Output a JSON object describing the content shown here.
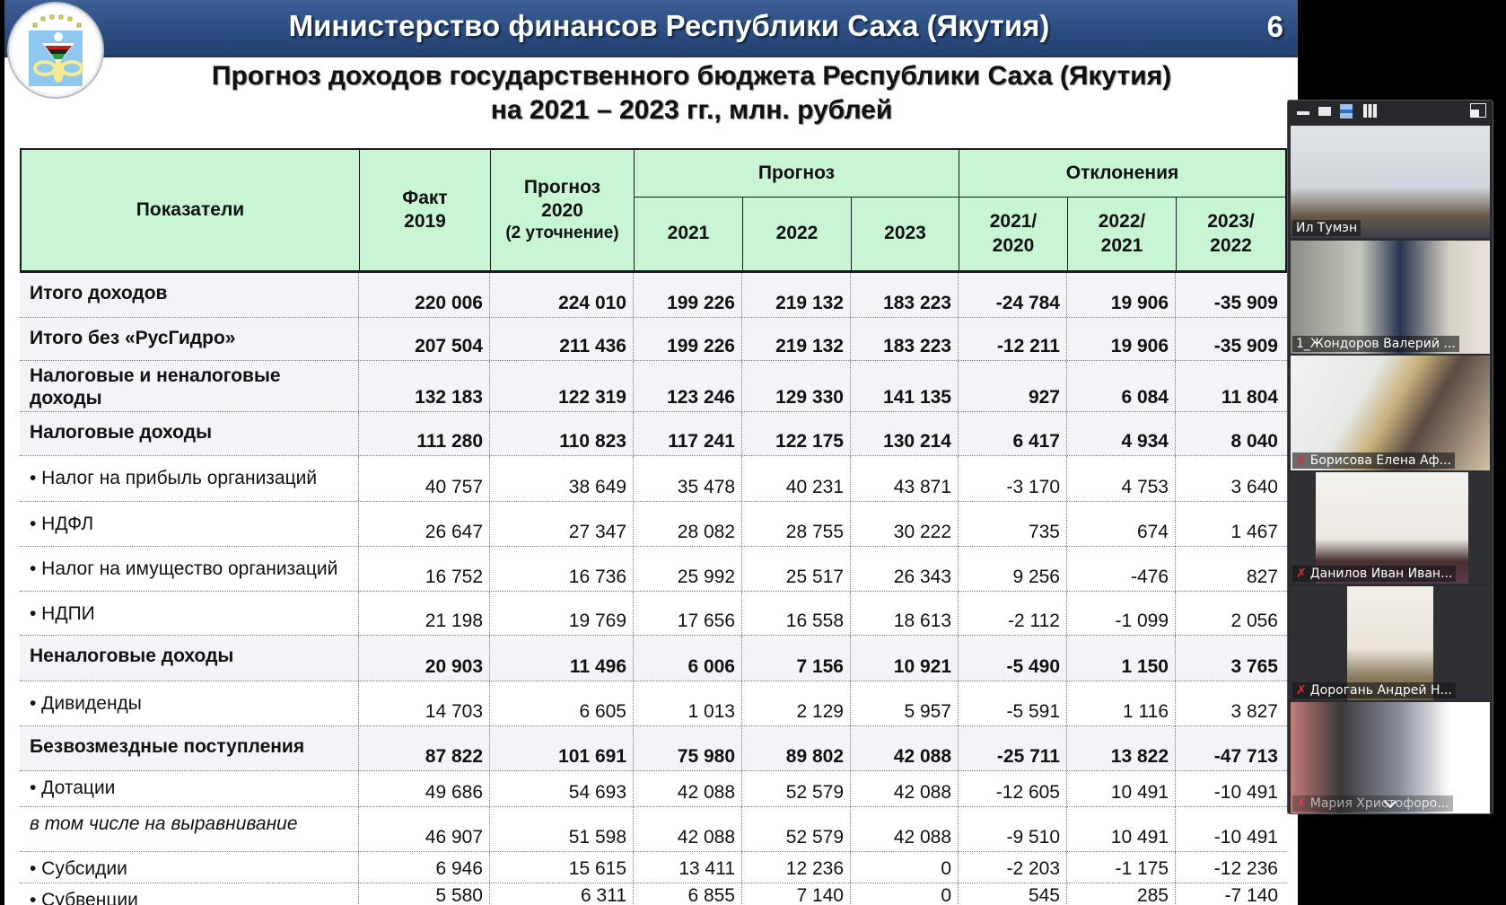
{
  "slide": {
    "ministry_title": "Министерство финансов Республики Саха (Якутия)",
    "page_number": "6",
    "title_line1": "Прогноз доходов государственного бюджета Республики Саха (Якутия)",
    "title_line2": "на 2021 – 2023 гг., млн. рублей",
    "logo": "ministry-emblem-icon"
  },
  "table": {
    "headers": {
      "indicator": "Показатели",
      "fact_2019": "Факт\n2019",
      "forecast_2020_line1": "Прогноз",
      "forecast_2020_line2": "2020",
      "forecast_2020_line3": "(2 уточнение)",
      "forecast_group": "Прогноз",
      "deviations_group": "Отклонения",
      "y2021": "2021",
      "y2022": "2022",
      "y2023": "2023",
      "d1_line1": "2021/",
      "d1_line2": "2020",
      "d2_line1": "2022/",
      "d2_line2": "2021",
      "d3_line1": "2023/",
      "d3_line2": "2022",
      "fact_line1": "Факт",
      "fact_line2": "2019"
    },
    "rows": [
      {
        "label": "Итого доходов",
        "style": "bold",
        "values": [
          "220 006",
          "224 010",
          "199 226",
          "219 132",
          "183 223",
          "-24 784",
          "19 906",
          "-35 909"
        ]
      },
      {
        "label": "Итого без «РусГидро»",
        "style": "bold",
        "values": [
          "207 504",
          "211 436",
          "199 226",
          "219 132",
          "183 223",
          "-12 211",
          "19 906",
          "-35 909"
        ]
      },
      {
        "label": "Налоговые и неналоговые доходы",
        "style": "bold",
        "values": [
          "132 183",
          "122 319",
          "123 246",
          "129 330",
          "141 135",
          "927",
          "6 084",
          "11 804"
        ]
      },
      {
        "label": "Налоговые доходы",
        "style": "bold",
        "values": [
          "111 280",
          "110 823",
          "117 241",
          "122 175",
          "130 214",
          "6 417",
          "4 934",
          "8 040"
        ]
      },
      {
        "label": "• Налог на прибыль  организаций",
        "style": "sub",
        "values": [
          "40 757",
          "38 649",
          "35 478",
          "40 231",
          "43 871",
          "-3 170",
          "4 753",
          "3 640"
        ]
      },
      {
        "label": "• НДФЛ",
        "style": "sub",
        "values": [
          "26 647",
          "27 347",
          "28 082",
          "28 755",
          "30 222",
          "735",
          "674",
          "1 467"
        ]
      },
      {
        "label": "• Налог на имущество  организаций",
        "style": "sub",
        "values": [
          "16 752",
          "16 736",
          "25 992",
          "25 517",
          "26 343",
          "9 256",
          "-476",
          "827"
        ]
      },
      {
        "label": "• НДПИ",
        "style": "sub",
        "values": [
          "21 198",
          "19 769",
          "17 656",
          "16 558",
          "18 613",
          "-2 112",
          "-1 099",
          "2 056"
        ]
      },
      {
        "label": "Неналоговые доходы",
        "style": "bold",
        "values": [
          "20 903",
          "11 496",
          "6 006",
          "7 156",
          "10 921",
          "-5 490",
          "1 150",
          "3 765"
        ]
      },
      {
        "label": "• Дивиденды",
        "style": "sub",
        "values": [
          "14 703",
          "6 605",
          "1 013",
          "2 129",
          "5 957",
          "-5 591",
          "1 116",
          "3 827"
        ]
      },
      {
        "label": "Безвозмездные поступления",
        "style": "bold",
        "values": [
          "87 822",
          "101 691",
          "75 980",
          "89 802",
          "42 088",
          "-25 711",
          "13 822",
          "-47 713"
        ]
      },
      {
        "label": "• Дотации",
        "style": "sub",
        "values": [
          "49 686",
          "54 693",
          "42 088",
          "52 579",
          "42 088",
          "-12 605",
          "10 491",
          "-10 491"
        ]
      },
      {
        "label": "в том числе на выравнивание",
        "style": "italic",
        "values": [
          "46 907",
          "51 598",
          "42 088",
          "52 579",
          "42 088",
          "-9 510",
          "10 491",
          "-10 491"
        ]
      },
      {
        "label": "• Субсидии",
        "style": "sub",
        "values": [
          "6 946",
          "15 615",
          "13 411",
          "12 236",
          "0",
          "-2 203",
          "-1 175",
          "-12 236"
        ]
      },
      {
        "label": "• Субвенции",
        "style": "sub",
        "values": [
          "5 580",
          "6 311",
          "6 855",
          "7 140",
          "0",
          "545",
          "285",
          "-7 140"
        ]
      }
    ]
  },
  "video_panel": {
    "toolbar": {
      "minimize": "minimize-icon",
      "single_view": "single-view-icon",
      "strip_view": "strip-view-icon",
      "grid_view": "grid-view-icon",
      "pop_out": "exit-minimized-icon"
    },
    "participants": [
      {
        "name": "Ил Тумэн",
        "muted": false,
        "active": false
      },
      {
        "name": "1_Жондоров Валерий ...",
        "muted": false,
        "active": true
      },
      {
        "name": "Борисова Елена Аф...",
        "muted": true,
        "active": false
      },
      {
        "name": "Данилов Иван Иван...",
        "muted": true,
        "active": false
      },
      {
        "name": "Дорогань Андрей Н...",
        "muted": true,
        "active": false
      },
      {
        "name": "Мария Христофоро...",
        "muted": true,
        "active": false
      }
    ],
    "mic_off_glyph": "✗"
  },
  "colors": {
    "header_bar": "#2c4d82",
    "table_header_bg": "#c8f5d4",
    "bold_row_bg": "#f2f4f8",
    "active_speaker": "#b8e05a",
    "mic_off": "#e0303a"
  }
}
